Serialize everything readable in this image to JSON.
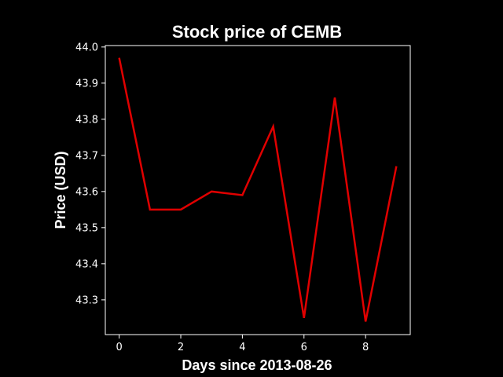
{
  "chart_data": {
    "type": "line",
    "title": "Stock price of CEMB",
    "xlabel": "Days since 2013-08-26",
    "ylabel": "Price (USD)",
    "x": [
      0,
      1,
      2,
      3,
      4,
      5,
      6,
      7,
      8,
      9
    ],
    "series": [
      {
        "values": [
          43.97,
          43.55,
          43.55,
          43.6,
          43.59,
          43.78,
          43.25,
          43.86,
          43.24,
          43.67
        ],
        "color": "#e00000"
      }
    ],
    "x_ticks": [
      "0",
      "2",
      "4",
      "6",
      "8"
    ],
    "y_ticks": [
      "43.3",
      "43.4",
      "43.5",
      "43.6",
      "43.7",
      "43.8",
      "43.9",
      "44.0"
    ],
    "xlim": [
      -0.45,
      9.45
    ],
    "ylim": [
      43.204,
      44.004
    ],
    "grid": false,
    "background": "#000000",
    "foreground": "#ffffff"
  }
}
